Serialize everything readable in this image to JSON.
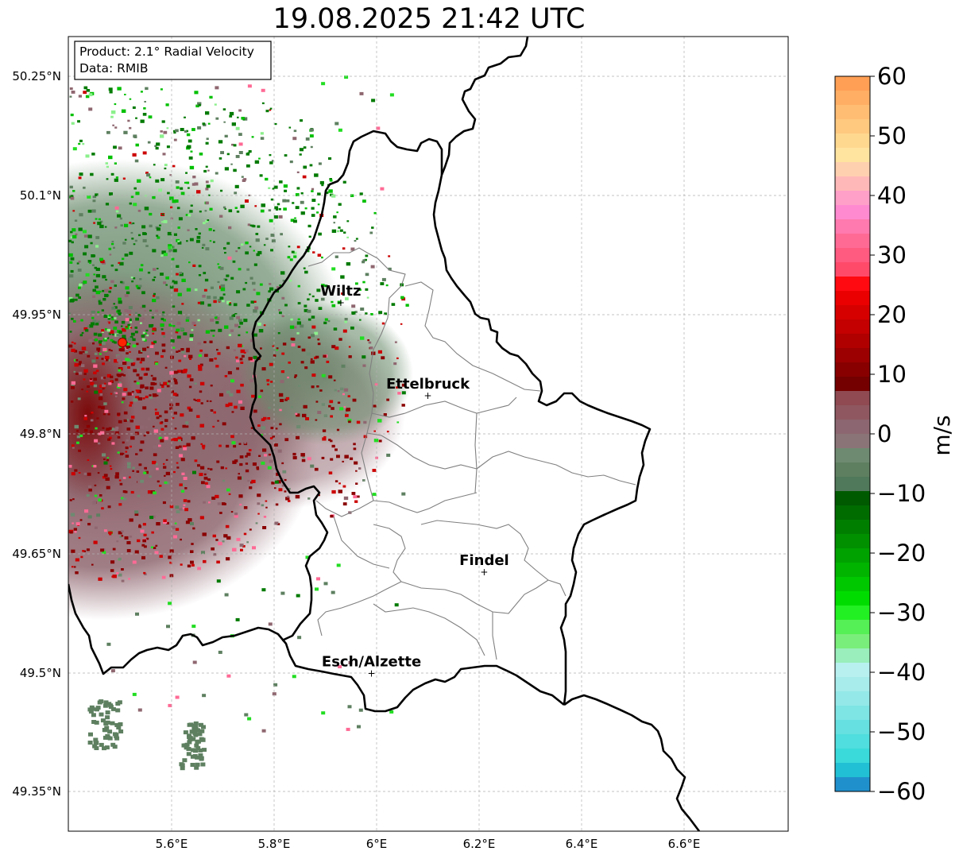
{
  "title": "19.08.2025 21:42 UTC",
  "info_box": {
    "line1": "Product: 2.1° Radial Velocity",
    "line2": "Data: RMIB"
  },
  "axes": {
    "lat_ticks": [
      "50.25°N",
      "50.1°N",
      "49.95°N",
      "49.8°N",
      "49.65°N",
      "49.5°N",
      "49.35°N"
    ],
    "lon_ticks": [
      "5.6°E",
      "5.8°E",
      "6°E",
      "6.2°E",
      "6.4°E",
      "6.6°E"
    ]
  },
  "colorbar": {
    "label": "m/s",
    "ticks": [
      "60",
      "50",
      "40",
      "30",
      "20",
      "10",
      "0",
      "−10",
      "−20",
      "−30",
      "−40",
      "−50",
      "−60"
    ],
    "range": [
      -60,
      60
    ]
  },
  "cities": [
    {
      "name": "Wiltz",
      "lon": 5.93,
      "lat": 49.965
    },
    {
      "name": "Ettelbruck",
      "lon": 6.1,
      "lat": 49.848
    },
    {
      "name": "Findel",
      "lon": 6.21,
      "lat": 49.626
    },
    {
      "name": "Esch/Alzette",
      "lon": 5.99,
      "lat": 49.499
    }
  ],
  "radar_site": {
    "lon": 5.505,
    "lat": 49.914
  },
  "colors": {
    "border": "#000000",
    "admin_lines": "#808080",
    "radar_marker": "#ff2200",
    "grid": "#b0b0b0"
  }
}
